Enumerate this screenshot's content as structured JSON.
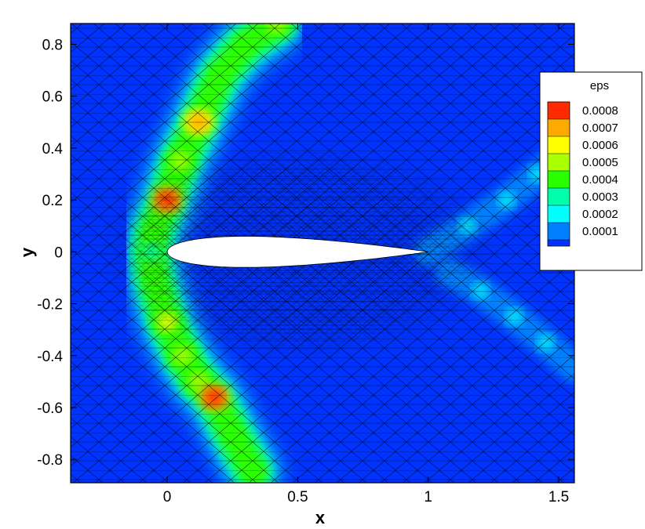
{
  "chart_data": {
    "type": "heatmap",
    "title": "",
    "xlabel": "x",
    "ylabel": "y",
    "xlim": [
      -0.37,
      1.56
    ],
    "ylim": [
      -0.89,
      0.88
    ],
    "x_ticks": [
      {
        "value": 0,
        "label": "0"
      },
      {
        "value": 0.5,
        "label": "0.5"
      },
      {
        "value": 1,
        "label": "1"
      },
      {
        "value": 1.5,
        "label": "1.5"
      }
    ],
    "y_ticks": [
      {
        "value": 0.8,
        "label": "0.8"
      },
      {
        "value": 0.6,
        "label": "0.6"
      },
      {
        "value": 0.4,
        "label": "0.4"
      },
      {
        "value": 0.2,
        "label": "0.2"
      },
      {
        "value": 0,
        "label": "0"
      },
      {
        "value": -0.2,
        "label": "-0.2"
      },
      {
        "value": -0.4,
        "label": "-0.4"
      },
      {
        "value": -0.6,
        "label": "-0.6"
      },
      {
        "value": -0.8,
        "label": "-0.8"
      }
    ],
    "colorbar": {
      "title": "eps",
      "placement": "right",
      "levels": [
        {
          "label": "0.0008",
          "value": 0.0008,
          "color": "#ff2a00"
        },
        {
          "label": "0.0007",
          "value": 0.0007,
          "color": "#ffaa00"
        },
        {
          "label": "0.0006",
          "value": 0.0006,
          "color": "#ffff00"
        },
        {
          "label": "0.0005",
          "value": 0.0005,
          "color": "#aaff00"
        },
        {
          "label": "0.0004",
          "value": 0.0004,
          "color": "#2aff00"
        },
        {
          "label": "0.0003",
          "value": 0.0003,
          "color": "#00ffaa"
        },
        {
          "label": "0.0002",
          "value": 0.0002,
          "color": "#00ffff"
        },
        {
          "label": "0.0001",
          "value": 0.0001,
          "color": "#0080ff"
        }
      ],
      "min_color": "#0033ff"
    },
    "background_color": "#0033ff",
    "airfoil": {
      "leading_edge": [
        0,
        0
      ],
      "trailing_edge": [
        1,
        0
      ],
      "max_thickness": 0.12,
      "color": "#ffffff"
    },
    "shock_band": [
      {
        "x": 0.42,
        "y": 0.88,
        "eps": 0.0005
      },
      {
        "x": 0.3,
        "y": 0.8,
        "eps": 0.00045
      },
      {
        "x": 0.2,
        "y": 0.68,
        "eps": 0.0004
      },
      {
        "x": 0.12,
        "y": 0.5,
        "eps": 0.00075
      },
      {
        "x": 0.05,
        "y": 0.35,
        "eps": 0.0005
      },
      {
        "x": 0.0,
        "y": 0.2,
        "eps": 0.0008
      },
      {
        "x": -0.05,
        "y": 0.08,
        "eps": 0.0004
      },
      {
        "x": -0.06,
        "y": 0.0,
        "eps": 0.0003
      },
      {
        "x": -0.05,
        "y": -0.1,
        "eps": 0.0004
      },
      {
        "x": 0.0,
        "y": -0.27,
        "eps": 0.0006
      },
      {
        "x": 0.06,
        "y": -0.4,
        "eps": 0.00055
      },
      {
        "x": 0.12,
        "y": -0.5,
        "eps": 0.0005
      },
      {
        "x": 0.18,
        "y": -0.56,
        "eps": 0.00085
      },
      {
        "x": 0.25,
        "y": -0.7,
        "eps": 0.0004
      },
      {
        "x": 0.33,
        "y": -0.85,
        "eps": 0.0004
      }
    ],
    "wake_bands": [
      [
        [
          1.0,
          0.0,
          0.0001
        ],
        [
          1.15,
          0.1,
          0.0002
        ],
        [
          1.3,
          0.2,
          0.00025
        ],
        [
          1.42,
          0.3,
          0.0002
        ],
        [
          1.55,
          0.4,
          0.0001
        ]
      ],
      [
        [
          1.08,
          -0.08,
          0.0001
        ],
        [
          1.2,
          -0.15,
          0.0002
        ],
        [
          1.33,
          -0.25,
          0.00025
        ],
        [
          1.45,
          -0.35,
          0.0002
        ],
        [
          1.56,
          -0.45,
          0.0001
        ]
      ]
    ]
  }
}
